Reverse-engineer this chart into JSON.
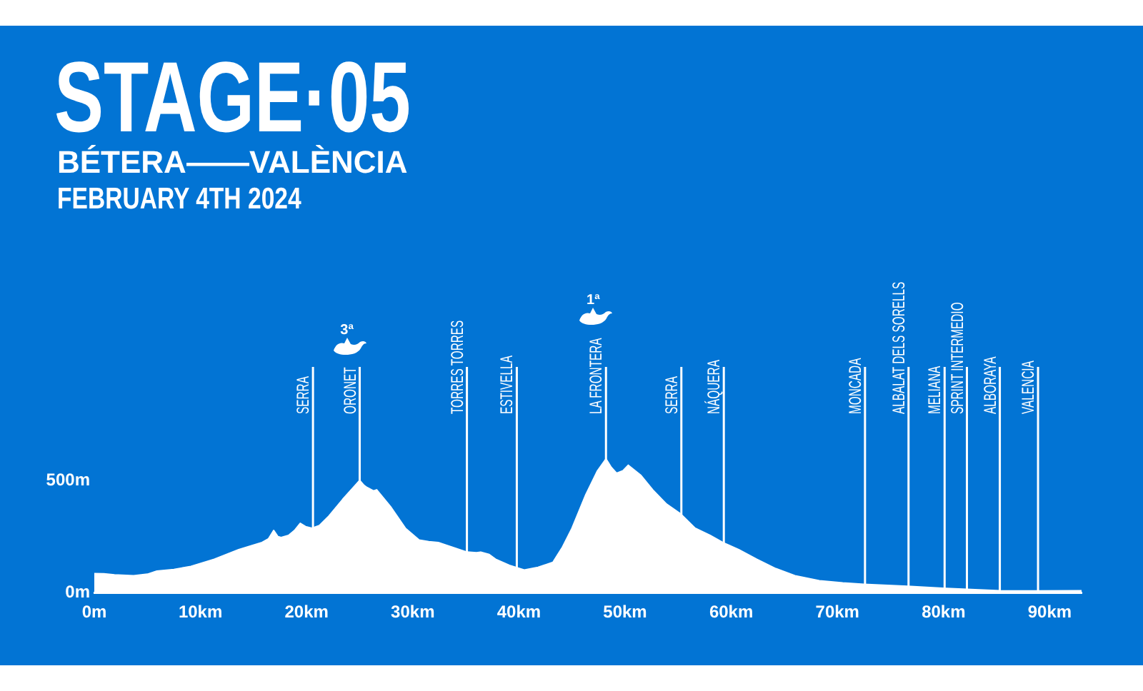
{
  "chart_data": {
    "type": "area",
    "title": "STAGE·05",
    "subtitle": "BÉTERA——VALÈNCIA",
    "annotations": [
      "FEBRUARY 4TH 2024",
      "3ª",
      "1ª"
    ],
    "x": [
      0.0,
      0.9,
      1.9,
      3.7,
      5.0,
      5.9,
      7.5,
      9.1,
      11.3,
      13.6,
      15.8,
      16.4,
      16.9,
      17.3,
      17.6,
      18.3,
      18.9,
      19.4,
      19.9,
      20.5,
      21.2,
      22.1,
      23.4,
      24.4,
      25.0,
      25.4,
      25.7,
      26.3,
      26.6,
      27.9,
      29.3,
      30.6,
      31.5,
      32.4,
      33.7,
      35.1,
      36.0,
      36.4,
      37.2,
      37.8,
      39.1,
      40.5,
      41.8,
      43.2,
      43.6,
      44.1,
      45.0,
      46.3,
      47.4,
      48.2,
      48.7,
      49.2,
      49.8,
      50.3,
      51.5,
      52.6,
      53.9,
      55.2,
      56.6,
      58.0,
      59.2,
      60.7,
      62.4,
      64.2,
      66.0,
      68.3,
      70.5,
      72.5,
      76.6,
      79.9,
      82.2,
      85.3,
      88.7,
      93.0
    ],
    "values": [
      85,
      84,
      79,
      75,
      82,
      96,
      103,
      117,
      149,
      192,
      224,
      240,
      278,
      250,
      246,
      256,
      280,
      310,
      295,
      288,
      300,
      342,
      417,
      470,
      502,
      480,
      470,
      455,
      460,
      385,
      288,
      235,
      228,
      224,
      203,
      181,
      178,
      181,
      170,
      149,
      122,
      101,
      113,
      135,
      165,
      203,
      288,
      438,
      545,
      598,
      560,
      534,
      545,
      570,
      524,
      460,
      396,
      353,
      288,
      256,
      224,
      192,
      149,
      107,
      75,
      53,
      43,
      37,
      28,
      19,
      14,
      8,
      7,
      8
    ],
    "color": "#ffffff",
    "xlim": [
      0,
      93
    ],
    "xticks": [
      {
        "value": 0,
        "label": "0m"
      },
      {
        "value": 10,
        "label": "10km"
      },
      {
        "value": 20,
        "label": "20km"
      },
      {
        "value": 30,
        "label": "30km"
      },
      {
        "value": 40,
        "label": "40km"
      },
      {
        "value": 50,
        "label": "50km"
      },
      {
        "value": 60,
        "label": "60km"
      },
      {
        "value": 70,
        "label": "70km"
      },
      {
        "value": 80,
        "label": "80km"
      },
      {
        "value": 90,
        "label": "90km"
      }
    ],
    "ylim": [
      0,
      1010
    ],
    "yticks": [
      {
        "value": 0,
        "label": "0m"
      },
      {
        "value": 500,
        "label": "500m"
      }
    ],
    "ref_lines": [
      {
        "axis": "x",
        "value": 20.6,
        "label": "SERRA"
      },
      {
        "axis": "x",
        "value": 25.0,
        "label": "ORONET"
      },
      {
        "axis": "x",
        "value": 35.1,
        "label": "TORRES TORRES"
      },
      {
        "axis": "x",
        "value": 39.8,
        "label": "ESTIVELLA"
      },
      {
        "axis": "x",
        "value": 48.2,
        "label": "LA FRONTERA"
      },
      {
        "axis": "x",
        "value": 55.3,
        "label": "SERRA"
      },
      {
        "axis": "x",
        "value": 59.3,
        "label": "NÁQUERA"
      },
      {
        "axis": "x",
        "value": 72.6,
        "label": "MONCADA"
      },
      {
        "axis": "x",
        "value": 76.7,
        "label": "ALBALAT DELS SORELLS"
      },
      {
        "axis": "x",
        "value": 80.1,
        "label": "MELIANA"
      },
      {
        "axis": "x",
        "value": 82.2,
        "label": "SPRINT INTERMEDIO"
      },
      {
        "axis": "x",
        "value": 85.3,
        "label": "ALBORAYA"
      },
      {
        "axis": "x",
        "value": 88.9,
        "label": "VALENCIA"
      }
    ]
  }
}
